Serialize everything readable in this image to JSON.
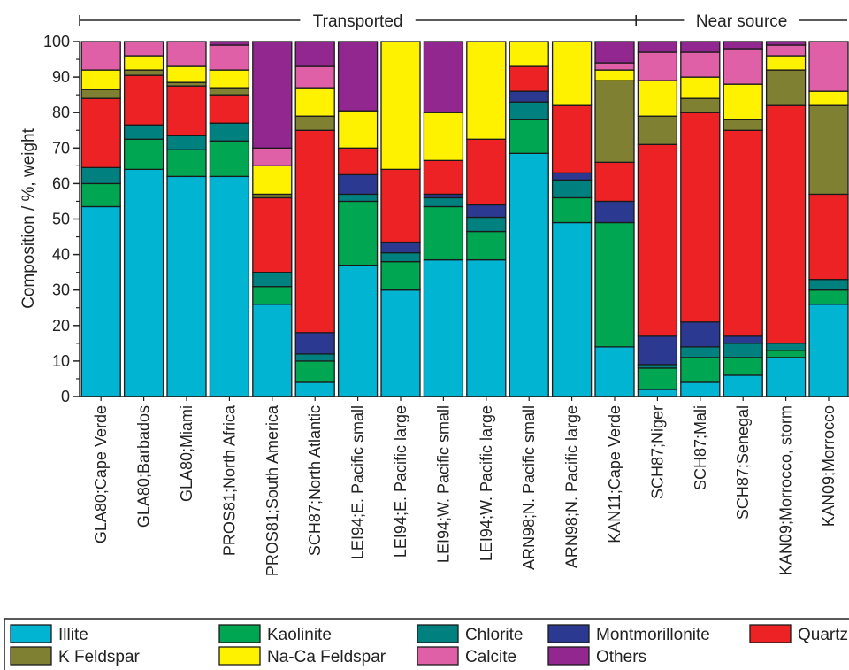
{
  "chart_data": {
    "type": "bar",
    "stacked": true,
    "ylabel": "Composition / %, weight",
    "ylim": [
      0,
      100
    ],
    "yticks": [
      0,
      10,
      20,
      30,
      40,
      50,
      60,
      70,
      80,
      90,
      100
    ],
    "grid": false,
    "legend_placement": "bottom",
    "groups": [
      {
        "label": "Transported",
        "first": 0,
        "last": 12
      },
      {
        "label": "Near source",
        "first": 13,
        "last": 17
      }
    ],
    "categories": [
      "GLA80;Cape Verde",
      "GLA80;Barbados",
      "GLA80;Miami",
      "PROS81;North Africa",
      "PROS81;South America",
      "SCH87;North Atlantic",
      "LEI94;E. Pacific small",
      "LEI94;E. Pacific large",
      "LEI94;W. Pacific small",
      "LEI94;W. Pacific large",
      "ARN98;N. Pacific small",
      "ARN98;N. Pacific large",
      "KAN11;Cape Verde",
      "SCH87;Niger",
      "SCH87;Mali",
      "SCH87;Senegal",
      "KAN09;Morrocco, storm",
      "KAN09;Morrocco"
    ],
    "series": [
      {
        "name": "Illite",
        "color": "#00b4d2",
        "values": [
          53.5,
          64,
          62,
          62,
          26,
          4,
          37,
          30,
          38.5,
          38.5,
          68.5,
          49,
          14,
          2,
          4,
          6,
          11,
          26
        ]
      },
      {
        "name": "Kaolinite",
        "color": "#00a651",
        "values": [
          6.5,
          8.5,
          7.5,
          10,
          5,
          6,
          18,
          8,
          15,
          8,
          9.5,
          7,
          35,
          6,
          7,
          5,
          2,
          4
        ]
      },
      {
        "name": "Chlorite",
        "color": "#00807f",
        "values": [
          4.5,
          4,
          4,
          5,
          4,
          2,
          2,
          2.5,
          2.5,
          4,
          5,
          5,
          0,
          1,
          3,
          4,
          2,
          3
        ]
      },
      {
        "name": "Montmorillonite",
        "color": "#2b3990",
        "values": [
          0,
          0,
          0,
          0,
          0,
          6,
          5.5,
          3,
          1,
          3.5,
          3,
          2,
          6,
          8,
          7,
          2,
          0,
          0
        ]
      },
      {
        "name": "Quartz",
        "color": "#ed2224",
        "values": [
          19.5,
          14,
          14,
          8,
          21,
          57,
          7.5,
          20.5,
          9.5,
          18.5,
          7,
          19,
          11,
          54,
          59,
          58,
          67,
          24
        ]
      },
      {
        "name": "K Feldspar",
        "color": "#808033",
        "values": [
          2.5,
          1.5,
          1,
          2,
          1,
          4,
          0,
          0,
          0,
          0,
          0,
          0,
          23,
          8,
          4,
          3,
          10,
          25
        ]
      },
      {
        "name": "Na-Ca Feldspar",
        "color": "#fff200",
        "values": [
          5.5,
          4,
          4.5,
          5,
          8,
          8,
          10.5,
          36,
          13.5,
          27.5,
          7,
          18,
          3,
          10,
          6,
          10,
          4,
          4
        ]
      },
      {
        "name": "Calcite",
        "color": "#e060a8",
        "values": [
          8,
          4,
          7,
          7,
          5,
          6,
          0,
          0,
          0,
          0,
          0,
          0,
          2,
          8,
          7,
          10,
          3,
          14
        ]
      },
      {
        "name": "Others",
        "color": "#92278f",
        "values": [
          0,
          0,
          0,
          1,
          30,
          7,
          19.5,
          0,
          20,
          0,
          0,
          0,
          6,
          3,
          3,
          2,
          1,
          0
        ]
      }
    ]
  }
}
